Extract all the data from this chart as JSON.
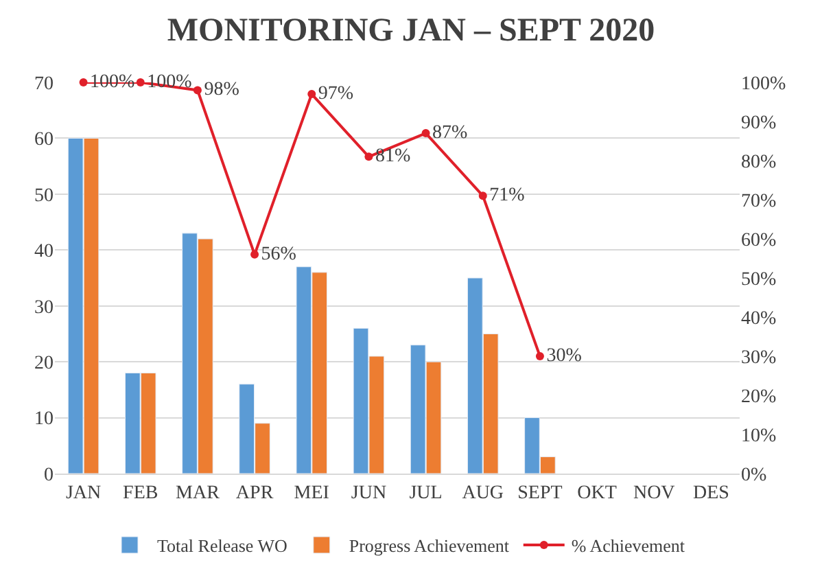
{
  "chart_data": {
    "type": "bar",
    "title": "MONITORING JAN – SEPT 2020",
    "categories": [
      "JAN",
      "FEB",
      "MAR",
      "APR",
      "MEI",
      "JUN",
      "JUL",
      "AUG",
      "SEPT",
      "OKT",
      "NOV",
      "DES"
    ],
    "series": [
      {
        "name": "Total Release WO",
        "color": "#5b9bd5",
        "values": [
          60,
          18,
          43,
          16,
          37,
          26,
          23,
          35,
          10,
          null,
          null,
          null
        ]
      },
      {
        "name": "Progress Achievement",
        "color": "#ed7d31",
        "values": [
          60,
          18,
          42,
          9,
          36,
          21,
          20,
          25,
          3,
          null,
          null,
          null
        ]
      },
      {
        "name": "% Achievement",
        "type": "line",
        "axis": "y2",
        "color": "#e0202a",
        "marker": "circle",
        "values": [
          100,
          100,
          98,
          56,
          97,
          81,
          87,
          71,
          30,
          null,
          null,
          null
        ],
        "value_labels": [
          "100%",
          "100%",
          "98%",
          "56%",
          "97%",
          "81%",
          "87%",
          "71%",
          "30%",
          null,
          null,
          null
        ]
      }
    ],
    "ylim": [
      0,
      70
    ],
    "yticks": [
      0,
      10,
      20,
      30,
      40,
      50,
      60,
      70
    ],
    "y2lim": [
      0,
      100
    ],
    "y2ticks": [
      {
        "value": 0,
        "label": "0%"
      },
      {
        "value": 10,
        "label": "10%"
      },
      {
        "value": 20,
        "label": "20%"
      },
      {
        "value": 30,
        "label": "30%"
      },
      {
        "value": 40,
        "label": "40%"
      },
      {
        "value": 50,
        "label": "50%"
      },
      {
        "value": 60,
        "label": "60%"
      },
      {
        "value": 70,
        "label": "70%"
      },
      {
        "value": 80,
        "label": "80%"
      },
      {
        "value": 90,
        "label": "90%"
      },
      {
        "value": 100,
        "label": "100%"
      }
    ],
    "grid": "y",
    "legend": "bottom"
  }
}
